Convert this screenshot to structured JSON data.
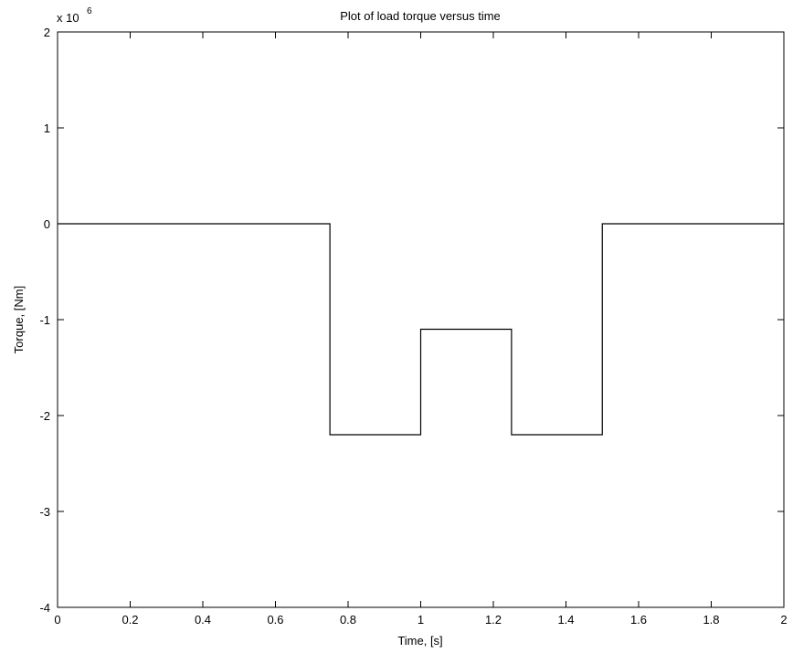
{
  "chart_data": {
    "type": "line",
    "title": "Plot of load torque versus time",
    "xlabel": "Time, [s]",
    "ylabel": "Torque, [Nm]",
    "exponent_label": {
      "base": "x 10",
      "power": "6"
    },
    "xlim": [
      0,
      2
    ],
    "ylim": [
      -4,
      2
    ],
    "y_scale_factor": 1000000,
    "x_ticks": [
      0,
      0.2,
      0.4,
      0.6,
      0.8,
      1,
      1.2,
      1.4,
      1.6,
      1.8,
      2
    ],
    "x_tick_labels": [
      "0",
      "0.2",
      "0.4",
      "0.6",
      "0.8",
      "1",
      "1.2",
      "1.4",
      "1.6",
      "1.8",
      "2"
    ],
    "y_ticks": [
      -4,
      -3,
      -2,
      -1,
      0,
      1,
      2
    ],
    "y_tick_labels": [
      "-4",
      "-3",
      "-2",
      "-1",
      "0",
      "1",
      "2"
    ],
    "grid": false,
    "line_color": "#000000",
    "series": [
      {
        "x": [
          0,
          0.75,
          0.75,
          1.0,
          1.0,
          1.25,
          1.25,
          1.5,
          1.5,
          2.0
        ],
        "y": [
          0,
          0,
          -2.2,
          -2.2,
          -1.1,
          -1.1,
          -2.2,
          -2.2,
          0,
          0
        ]
      }
    ]
  }
}
